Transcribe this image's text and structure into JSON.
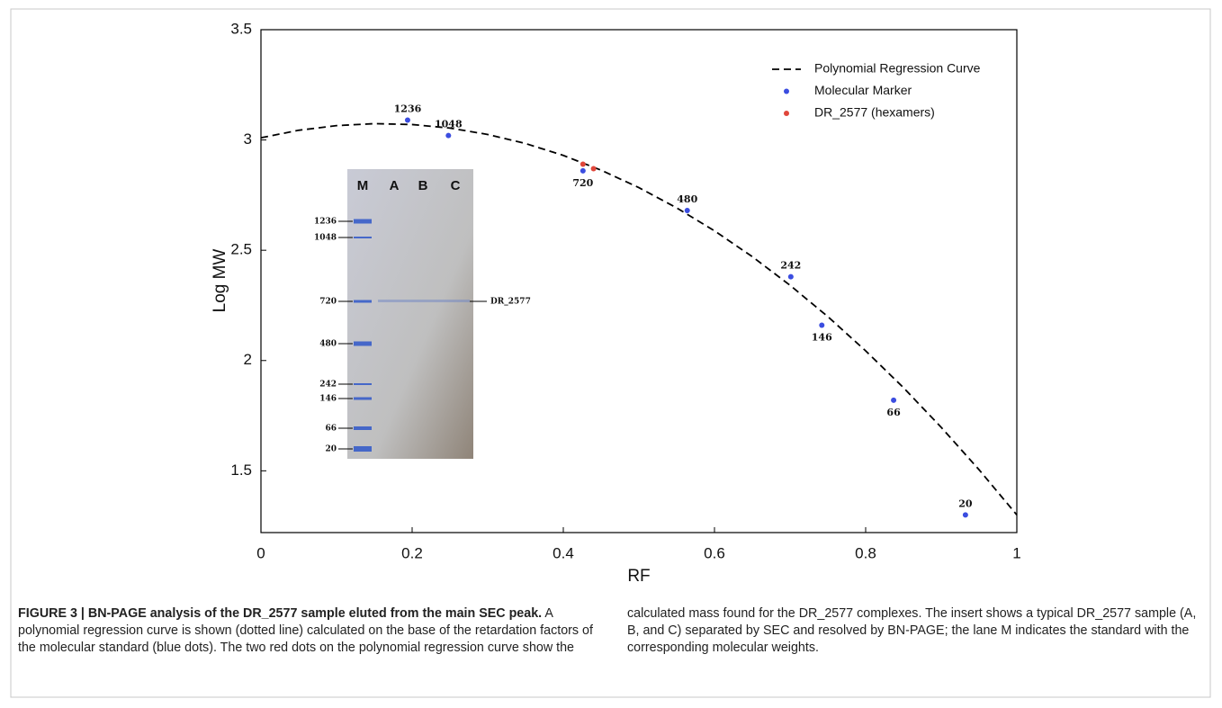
{
  "chart_data": {
    "type": "line",
    "xlabel": "RF",
    "ylabel": "Log MW",
    "xlim": [
      0,
      1
    ],
    "ylim": [
      1.22,
      3.5
    ],
    "xticks": [
      0,
      0.2,
      0.4,
      0.6,
      0.8,
      1
    ],
    "yticks": [
      1.5,
      2,
      2.5,
      3,
      3.5
    ],
    "legend": "upper right",
    "series": [
      {
        "name": "Polynomial Regression Curve",
        "color": "#000000",
        "style": "dashed",
        "x": [
          0,
          0.05,
          0.1,
          0.15,
          0.2,
          0.25,
          0.3,
          0.35,
          0.4,
          0.45,
          0.5,
          0.55,
          0.6,
          0.65,
          0.7,
          0.75,
          0.8,
          0.85,
          0.9,
          0.95,
          1
        ],
        "values": [
          3.01,
          3.044,
          3.065,
          3.074,
          3.07,
          3.054,
          3.025,
          2.984,
          2.93,
          2.863,
          2.784,
          2.692,
          2.588,
          2.471,
          2.341,
          2.199,
          2.044,
          1.877,
          1.697,
          1.505,
          1.3
        ]
      },
      {
        "name": "Molecular Marker",
        "color": "#3b4de0",
        "style": "points",
        "x": [
          0.194,
          0.248,
          0.426,
          0.564,
          0.701,
          0.742,
          0.837,
          0.932
        ],
        "values": [
          3.09,
          3.02,
          2.86,
          2.68,
          2.38,
          2.16,
          1.82,
          1.3
        ],
        "point_labels": [
          "1236",
          "1048",
          "720",
          "480",
          "242",
          "146",
          "66",
          "20"
        ]
      },
      {
        "name": "DR_2577 (hexamers)",
        "color": "#e0473b",
        "style": "points",
        "x": [
          0.426,
          0.44
        ],
        "values": [
          2.89,
          2.87
        ]
      }
    ]
  },
  "inset": {
    "lanes": [
      "M",
      "A",
      "B",
      "C"
    ],
    "markers": [
      "1236",
      "1048",
      "720",
      "480",
      "242",
      "146",
      "66",
      "20"
    ],
    "band_label": "DR_2577"
  },
  "caption": {
    "title": "FIGURE 3 | BN-PAGE analysis of the DR_2577 sample eluted from the main SEC peak.",
    "body": "A polynomial regression curve is shown (dotted line) calculated on the base of the retardation factors of the molecular standard (blue dots). The two red dots on the polynomial regression curve show the calculated mass found for the DR_2577 complexes. The insert shows a typical DR_2577 sample (A, B, and C) separated by SEC and resolved by BN-PAGE; the lane M indicates the standard with the corresponding molecular weights."
  }
}
